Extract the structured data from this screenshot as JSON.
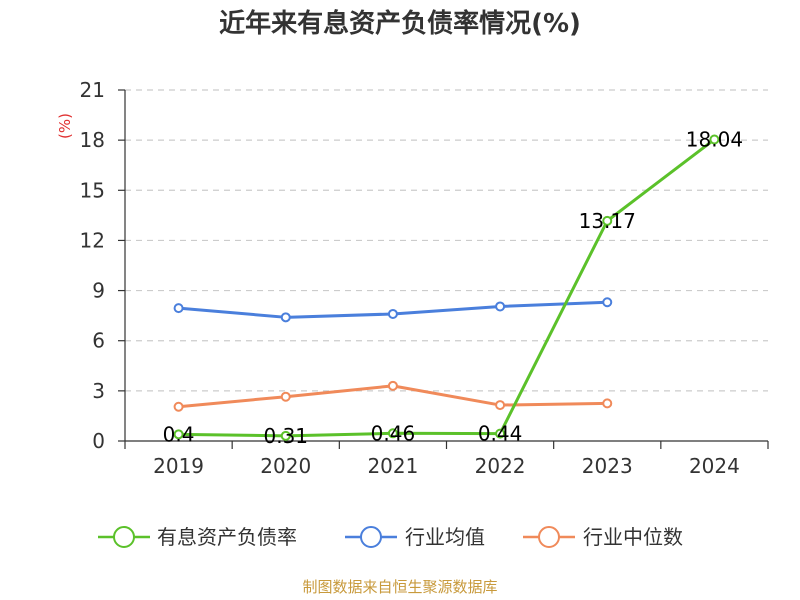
{
  "title": "近年来有息资产负债率情况(%)",
  "source": "制图数据来自恒生聚源数据库",
  "chart_data": {
    "type": "line",
    "title": "近年来有息资产负债率情况(%)",
    "ylabel": "(%)",
    "xlabel": "",
    "categories": [
      "2019",
      "2020",
      "2021",
      "2022",
      "2023",
      "2024"
    ],
    "ylim": [
      0,
      21
    ],
    "yticks": [
      0,
      3,
      6,
      9,
      12,
      15,
      18,
      21
    ],
    "grid": true,
    "legend_position": "bottom",
    "series": [
      {
        "name": "有息资产负债率",
        "color": "#5bc12a",
        "values": [
          0.4,
          0.31,
          0.46,
          0.44,
          13.17,
          18.04
        ],
        "labels": [
          "0.4",
          "0.31",
          "0.46",
          "0.44",
          "13.17",
          "18.04"
        ]
      },
      {
        "name": "行业均值",
        "color": "#4a7fdc",
        "values": [
          7.95,
          7.4,
          7.6,
          8.05,
          8.3,
          null
        ]
      },
      {
        "name": "行业中位数",
        "color": "#f08a5a",
        "values": [
          2.05,
          2.65,
          3.3,
          2.15,
          2.25,
          null
        ]
      }
    ]
  }
}
